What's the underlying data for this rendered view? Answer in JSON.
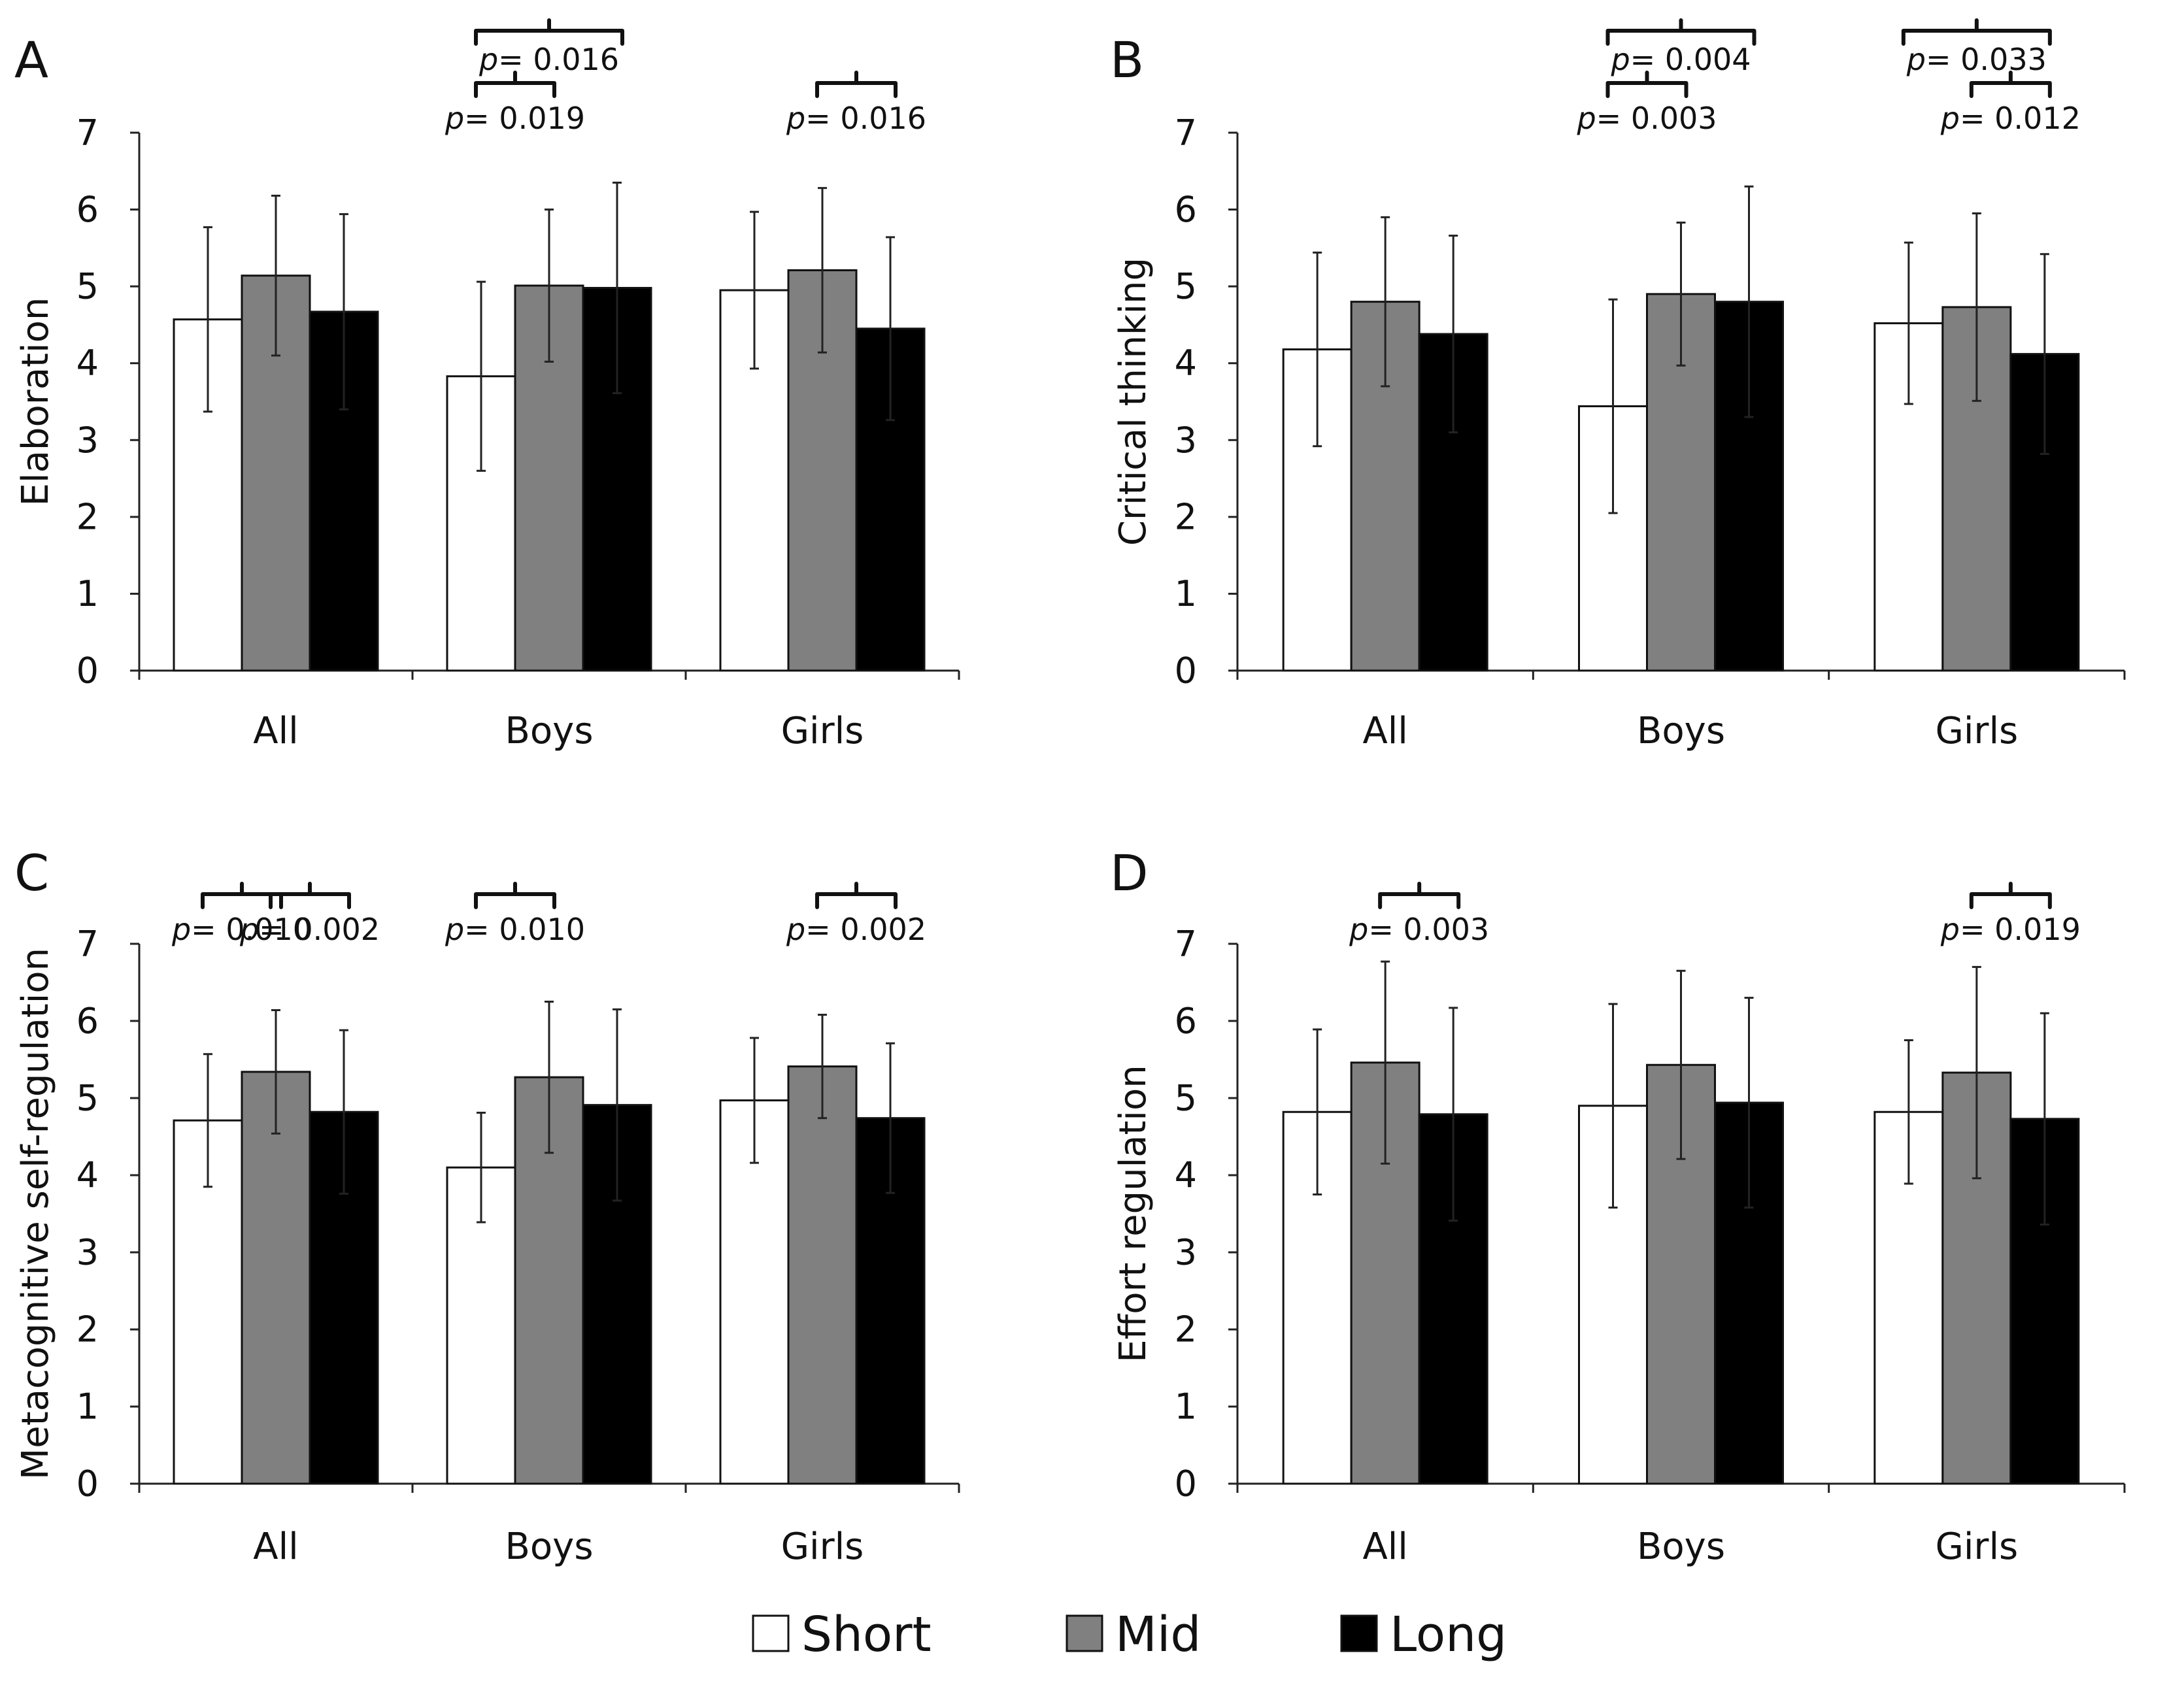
{
  "colors": {
    "short": "#ffffff",
    "mid": "#808080",
    "long": "#000000"
  },
  "legend": [
    {
      "key": "short",
      "label": "Short"
    },
    {
      "key": "mid",
      "label": "Mid"
    },
    {
      "key": "long",
      "label": "Long"
    }
  ],
  "chart_data": [
    {
      "panel": "A",
      "type": "bar",
      "ylabel": "Elaboration",
      "ylim": [
        0,
        7
      ],
      "yticks": [
        "0",
        "1",
        "2",
        "3",
        "4",
        "5",
        "6",
        "7"
      ],
      "categories": [
        "All",
        "Boys",
        "Girls"
      ],
      "series": [
        {
          "name": "Short",
          "values": [
            4.57,
            3.83,
            4.95
          ],
          "errors": [
            1.2,
            1.23,
            1.02
          ]
        },
        {
          "name": "Mid",
          "values": [
            5.14,
            5.01,
            5.21
          ],
          "errors": [
            1.04,
            0.99,
            1.07
          ]
        },
        {
          "name": "Long",
          "values": [
            4.67,
            4.98,
            4.45
          ],
          "errors": [
            1.27,
            1.37,
            1.19
          ]
        }
      ],
      "annotations": [
        {
          "p_label": "p",
          "p_value": "= 0.016",
          "cat": 1,
          "from": 0,
          "to": 2,
          "level": 2
        },
        {
          "p_label": "p",
          "p_value": "= 0.019",
          "cat": 1,
          "from": 0,
          "to": 1,
          "level": 1
        },
        {
          "p_label": "p",
          "p_value": "= 0.016",
          "cat": 2,
          "from": 1,
          "to": 2,
          "level": 1
        }
      ]
    },
    {
      "panel": "B",
      "type": "bar",
      "ylabel": "Critical thinking",
      "ylim": [
        0,
        7
      ],
      "yticks": [
        "0",
        "1",
        "2",
        "3",
        "4",
        "5",
        "6",
        "7"
      ],
      "categories": [
        "All",
        "Boys",
        "Girls"
      ],
      "series": [
        {
          "name": "Short",
          "values": [
            4.18,
            3.44,
            4.52
          ],
          "errors": [
            1.26,
            1.39,
            1.05
          ]
        },
        {
          "name": "Mid",
          "values": [
            4.8,
            4.9,
            4.73
          ],
          "errors": [
            1.1,
            0.93,
            1.22
          ]
        },
        {
          "name": "Long",
          "values": [
            4.38,
            4.8,
            4.12
          ],
          "errors": [
            1.28,
            1.5,
            1.3
          ]
        }
      ],
      "annotations": [
        {
          "p_label": "p",
          "p_value": "= 0.004",
          "cat": 1,
          "from": 0,
          "to": 2,
          "level": 2
        },
        {
          "p_label": "p",
          "p_value": "= 0.003",
          "cat": 1,
          "from": 0,
          "to": 1,
          "level": 1
        },
        {
          "p_label": "p",
          "p_value": "= 0.033",
          "cat": 2,
          "from": 0,
          "to": 2,
          "level": 2
        },
        {
          "p_label": "p",
          "p_value": "= 0.012",
          "cat": 2,
          "from": 1,
          "to": 2,
          "level": 1
        }
      ]
    },
    {
      "panel": "C",
      "type": "bar",
      "ylabel": "Metacognitive self-regulation",
      "ylim": [
        0,
        7
      ],
      "yticks": [
        "0",
        "1",
        "2",
        "3",
        "4",
        "5",
        "6",
        "7"
      ],
      "categories": [
        "All",
        "Boys",
        "Girls"
      ],
      "series": [
        {
          "name": "Short",
          "values": [
            4.71,
            4.1,
            4.97
          ],
          "errors": [
            0.86,
            0.71,
            0.81
          ]
        },
        {
          "name": "Mid",
          "values": [
            5.34,
            5.27,
            5.41
          ],
          "errors": [
            0.8,
            0.98,
            0.67
          ]
        },
        {
          "name": "Long",
          "values": [
            4.82,
            4.91,
            4.74
          ],
          "errors": [
            1.06,
            1.24,
            0.97
          ]
        }
      ],
      "annotations": [
        {
          "p_label": "p",
          "p_value": "= 0.010",
          "cat": 0,
          "from": 0,
          "to": 1,
          "level": 1
        },
        {
          "p_label": "p",
          "p_value": "= 0.002",
          "cat": 0,
          "from": 1,
          "to": 2,
          "level": 1
        },
        {
          "p_label": "p",
          "p_value": "= 0.010",
          "cat": 1,
          "from": 0,
          "to": 1,
          "level": 1
        },
        {
          "p_label": "p",
          "p_value": "= 0.002",
          "cat": 2,
          "from": 1,
          "to": 2,
          "level": 1
        }
      ]
    },
    {
      "panel": "D",
      "type": "bar",
      "ylabel": "Effort regulation",
      "ylim": [
        0,
        7
      ],
      "yticks": [
        "0",
        "1",
        "2",
        "3",
        "4",
        "5",
        "6",
        "7"
      ],
      "categories": [
        "All",
        "Boys",
        "Girls"
      ],
      "series": [
        {
          "name": "Short",
          "values": [
            4.82,
            4.9,
            4.82
          ],
          "errors": [
            1.07,
            1.32,
            0.93
          ]
        },
        {
          "name": "Mid",
          "values": [
            5.46,
            5.43,
            5.33
          ],
          "errors": [
            1.31,
            1.22,
            1.37
          ]
        },
        {
          "name": "Long",
          "values": [
            4.79,
            4.94,
            4.73
          ],
          "errors": [
            1.38,
            1.36,
            1.37
          ]
        }
      ],
      "annotations": [
        {
          "p_label": "p",
          "p_value": "= 0.003",
          "cat": 0,
          "from": 1,
          "to": 2,
          "level": 1
        },
        {
          "p_label": "p",
          "p_value": "= 0.019",
          "cat": 2,
          "from": 1,
          "to": 2,
          "level": 1
        }
      ]
    }
  ]
}
